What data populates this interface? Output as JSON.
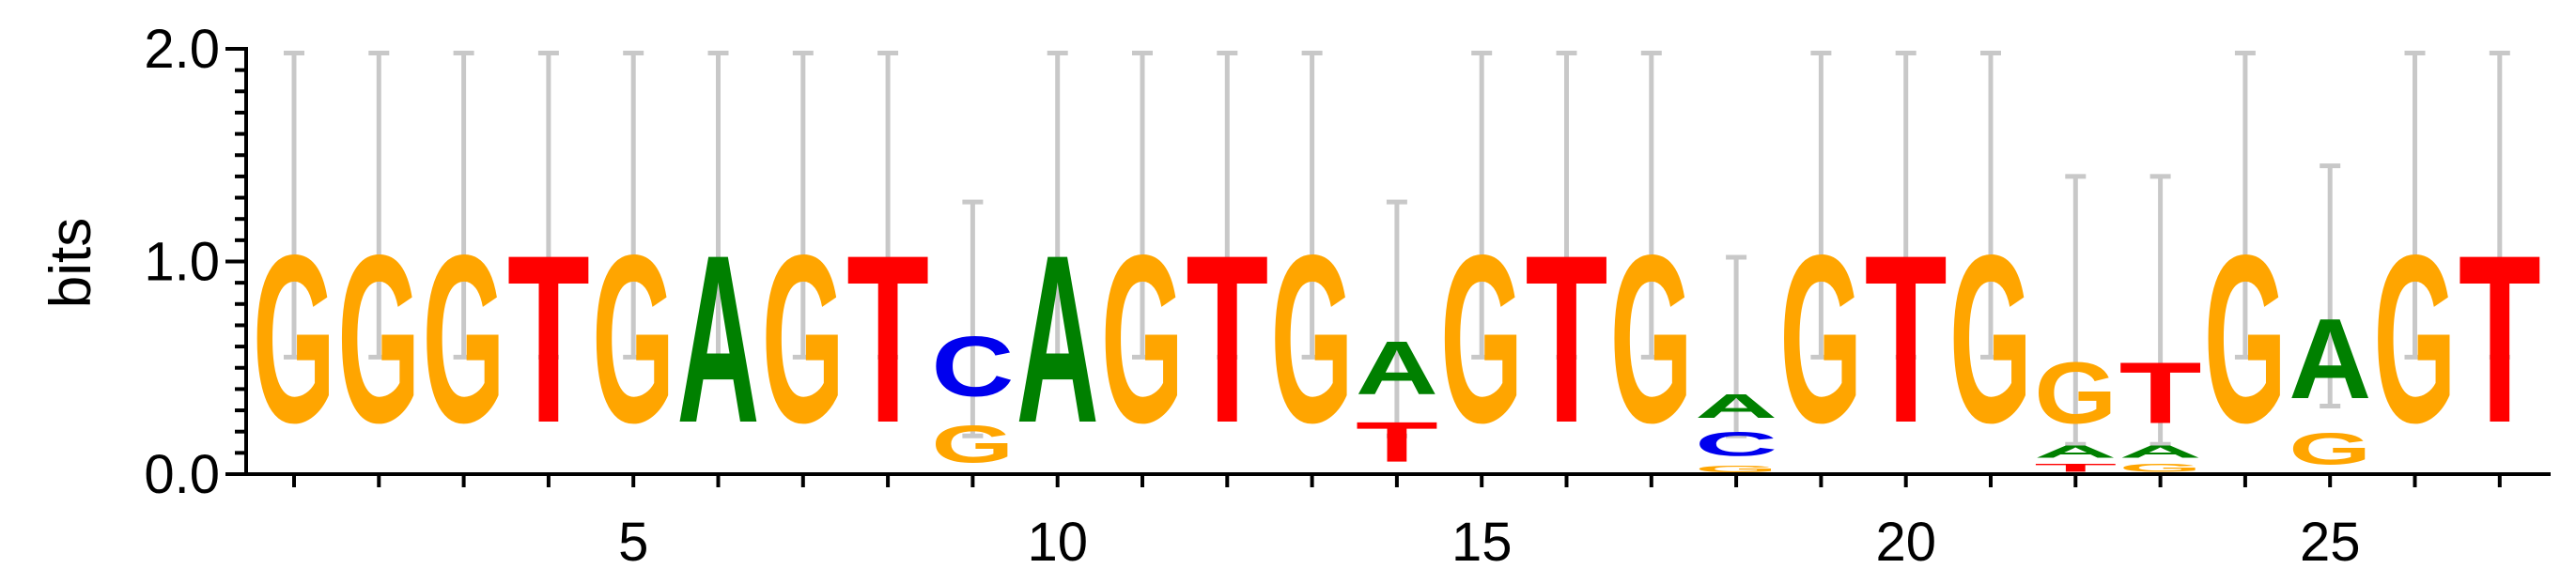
{
  "chart_data": {
    "type": "sequence_logo",
    "ylabel": "bits",
    "xlabel": "",
    "ylim": [
      0,
      2
    ],
    "y_ticks": [
      "0.0",
      "1.0",
      "2.0"
    ],
    "x_ticks": [
      5,
      10,
      15,
      20,
      25
    ],
    "positions": [
      1,
      2,
      3,
      4,
      5,
      6,
      7,
      8,
      9,
      10,
      11,
      12,
      13,
      14,
      15,
      16,
      17,
      18,
      19,
      20,
      21,
      22,
      23,
      24,
      25,
      26,
      27
    ],
    "colors": {
      "A": "#008000",
      "C": "#0000ee",
      "G": "#ffa500",
      "T": "#ff0000"
    },
    "error_bar_color": "#c8c8c8",
    "stacks": [
      {
        "pos": 1,
        "letters": [
          {
            "l": "G",
            "h": 1.26
          }
        ],
        "err": [
          0.55,
          1.98
        ]
      },
      {
        "pos": 2,
        "letters": [
          {
            "l": "G",
            "h": 1.26
          }
        ],
        "err": [
          0.55,
          1.98
        ]
      },
      {
        "pos": 3,
        "letters": [
          {
            "l": "G",
            "h": 1.26
          }
        ],
        "err": [
          0.55,
          1.98
        ]
      },
      {
        "pos": 4,
        "letters": [
          {
            "l": "T",
            "h": 1.26
          }
        ],
        "err": [
          0.55,
          1.98
        ]
      },
      {
        "pos": 5,
        "letters": [
          {
            "l": "G",
            "h": 1.26
          }
        ],
        "err": [
          0.55,
          1.98
        ]
      },
      {
        "pos": 6,
        "letters": [
          {
            "l": "A",
            "h": 1.26
          }
        ],
        "err": [
          0.55,
          1.98
        ]
      },
      {
        "pos": 7,
        "letters": [
          {
            "l": "G",
            "h": 1.26
          }
        ],
        "err": [
          0.55,
          1.98
        ]
      },
      {
        "pos": 8,
        "letters": [
          {
            "l": "T",
            "h": 1.26
          }
        ],
        "err": [
          0.55,
          1.98
        ]
      },
      {
        "pos": 9,
        "letters": [
          {
            "l": "G",
            "h": 0.28
          },
          {
            "l": "C",
            "h": 0.45
          }
        ],
        "err": [
          0.18,
          1.28
        ]
      },
      {
        "pos": 10,
        "letters": [
          {
            "l": "A",
            "h": 1.26
          }
        ],
        "err": [
          0.55,
          1.98
        ]
      },
      {
        "pos": 11,
        "letters": [
          {
            "l": "G",
            "h": 1.26
          }
        ],
        "err": [
          0.55,
          1.98
        ]
      },
      {
        "pos": 12,
        "letters": [
          {
            "l": "T",
            "h": 1.26
          }
        ],
        "err": [
          0.55,
          1.98
        ]
      },
      {
        "pos": 13,
        "letters": [
          {
            "l": "G",
            "h": 1.26
          }
        ],
        "err": [
          0.55,
          1.98
        ]
      },
      {
        "pos": 14,
        "letters": [
          {
            "l": "T",
            "h": 0.3
          },
          {
            "l": "A",
            "h": 0.4
          }
        ],
        "err": [
          0.18,
          1.28
        ]
      },
      {
        "pos": 15,
        "letters": [
          {
            "l": "G",
            "h": 1.26
          }
        ],
        "err": [
          0.55,
          1.98
        ]
      },
      {
        "pos": 16,
        "letters": [
          {
            "l": "T",
            "h": 1.26
          }
        ],
        "err": [
          0.55,
          1.98
        ]
      },
      {
        "pos": 17,
        "letters": [
          {
            "l": "G",
            "h": 1.26
          }
        ],
        "err": [
          0.55,
          1.98
        ]
      },
      {
        "pos": 18,
        "letters": [
          {
            "l": "G",
            "h": 0.05
          },
          {
            "l": "C",
            "h": 0.18
          },
          {
            "l": "A",
            "h": 0.18
          }
        ],
        "err": [
          0.18,
          1.02
        ]
      },
      {
        "pos": 19,
        "letters": [
          {
            "l": "G",
            "h": 1.26
          }
        ],
        "err": [
          0.55,
          1.98
        ]
      },
      {
        "pos": 20,
        "letters": [
          {
            "l": "T",
            "h": 1.26
          }
        ],
        "err": [
          0.55,
          1.98
        ]
      },
      {
        "pos": 21,
        "letters": [
          {
            "l": "G",
            "h": 1.26
          }
        ],
        "err": [
          0.55,
          1.98
        ]
      },
      {
        "pos": 22,
        "letters": [
          {
            "l": "T",
            "h": 0.06
          },
          {
            "l": "A",
            "h": 0.09
          },
          {
            "l": "G",
            "h": 0.46
          }
        ],
        "err": [
          0.14,
          1.4
        ]
      },
      {
        "pos": 23,
        "letters": [
          {
            "l": "G",
            "h": 0.06
          },
          {
            "l": "A",
            "h": 0.09
          },
          {
            "l": "T",
            "h": 0.46
          }
        ],
        "err": [
          0.14,
          1.4
        ]
      },
      {
        "pos": 24,
        "letters": [
          {
            "l": "G",
            "h": 1.26
          }
        ],
        "err": [
          0.55,
          1.98
        ]
      },
      {
        "pos": 25,
        "letters": [
          {
            "l": "G",
            "h": 0.24
          },
          {
            "l": "A",
            "h": 0.6
          }
        ],
        "err": [
          0.32,
          1.45
        ]
      },
      {
        "pos": 26,
        "letters": [
          {
            "l": "G",
            "h": 1.26
          }
        ],
        "err": [
          0.55,
          1.98
        ]
      },
      {
        "pos": 27,
        "letters": [
          {
            "l": "T",
            "h": 1.26
          }
        ],
        "err": [
          0.55,
          1.98
        ]
      }
    ]
  }
}
